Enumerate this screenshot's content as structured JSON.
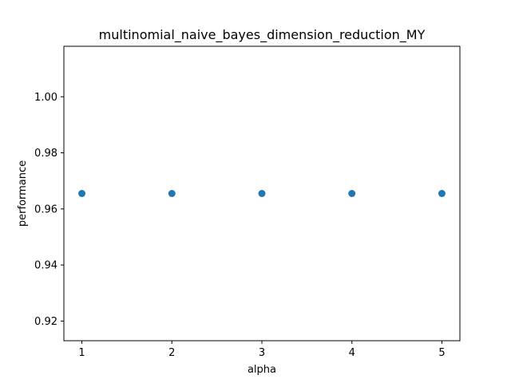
{
  "chart_data": {
    "type": "scatter",
    "title": "multinomial_naive_bayes_dimension_reduction_MY",
    "xlabel": "alpha",
    "ylabel": "performance",
    "x": [
      1,
      2,
      3,
      4,
      5
    ],
    "y": [
      0.9655,
      0.9655,
      0.9655,
      0.9655,
      0.9655
    ],
    "xlim": [
      0.8,
      5.2
    ],
    "ylim": [
      0.913,
      1.018
    ],
    "xticks": [
      1,
      2,
      3,
      4,
      5
    ],
    "xtick_labels": [
      "1",
      "2",
      "3",
      "4",
      "5"
    ],
    "yticks": [
      0.92,
      0.94,
      0.96,
      0.98,
      1.0
    ],
    "ytick_labels": [
      "0.92",
      "0.94",
      "0.96",
      "0.98",
      "1.00"
    ],
    "grid": false,
    "marker_color": "#1f77b4"
  }
}
